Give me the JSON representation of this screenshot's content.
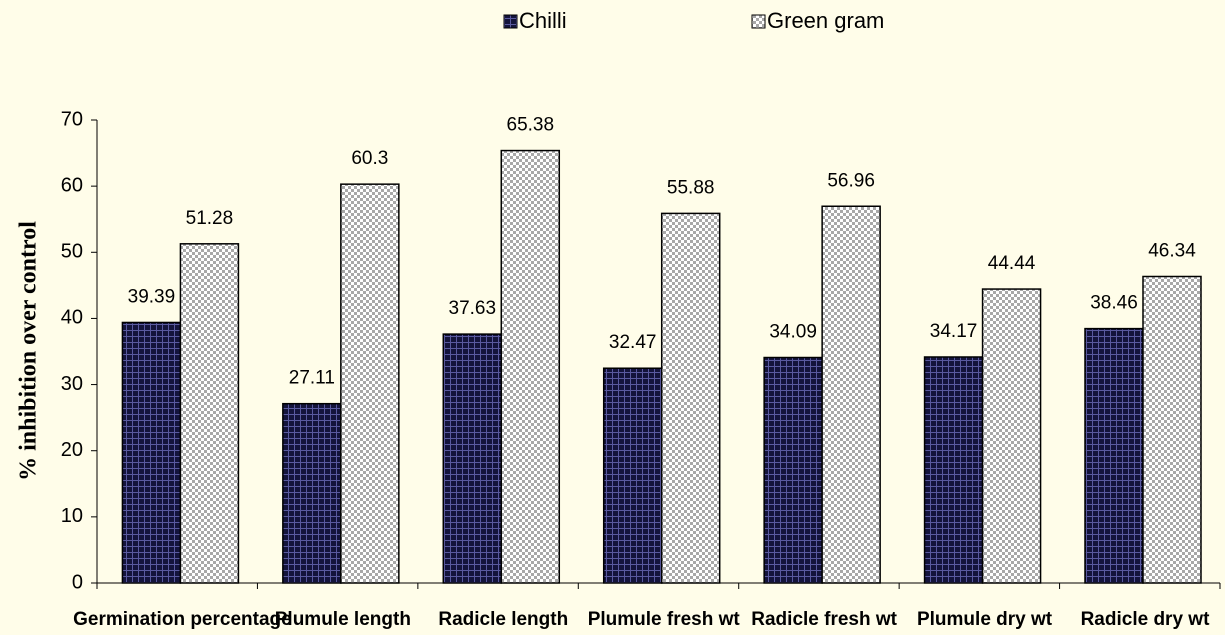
{
  "chart_data": {
    "type": "bar",
    "y_label": "% inhibition over control",
    "categories": [
      "Germination percentage",
      "Plumule length",
      "Radicle length",
      "Plumule fresh wt",
      "Radicle fresh wt",
      "Plumule dry wt",
      "Radicle dry wt"
    ],
    "series": [
      {
        "name": "Chilli",
        "color": "#14143c",
        "values": [
          39.39,
          27.11,
          37.63,
          32.47,
          34.09,
          34.17,
          38.46
        ]
      },
      {
        "name": "Green gram",
        "color": "#a8a8a8",
        "values": [
          51.28,
          60.3,
          65.38,
          55.88,
          56.96,
          44.44,
          46.34
        ]
      }
    ],
    "ylim": [
      0,
      70
    ],
    "yticks": [
      0,
      10,
      20,
      30,
      40,
      50,
      60,
      70
    ],
    "grid": false,
    "legend": "top"
  }
}
